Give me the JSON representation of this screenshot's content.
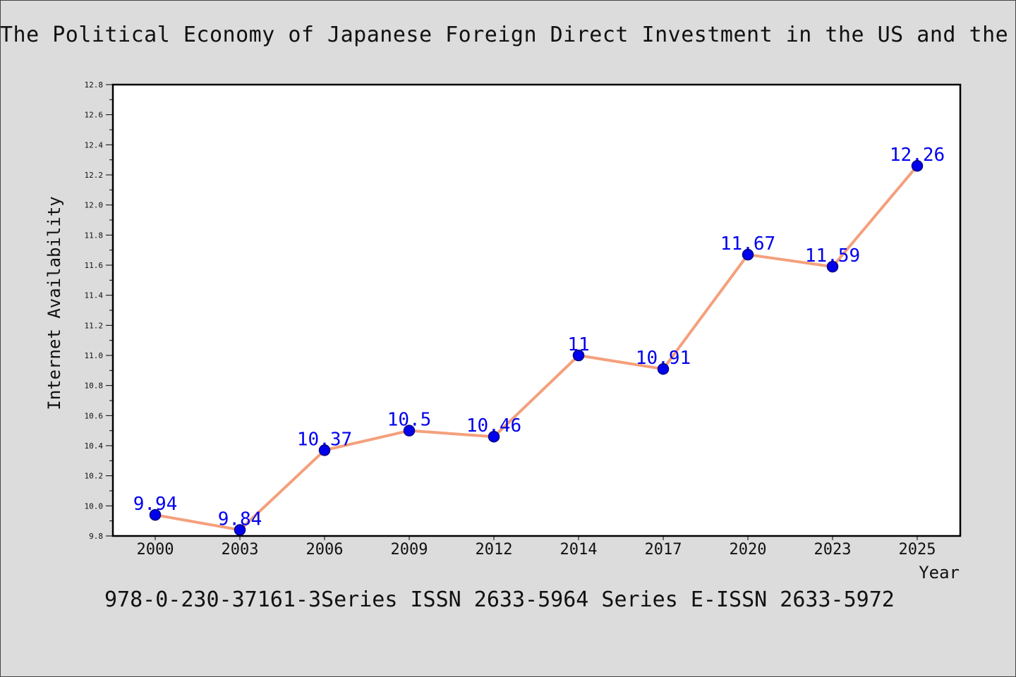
{
  "header": {
    "title": "The Political Economy of Japanese Foreign Direct Investment in the US and the UK"
  },
  "footer": {
    "caption": "978-0-230-37161-3Series ISSN 2633-5964 Series E-ISSN 2633-5972"
  },
  "chart_data": {
    "type": "line",
    "title": "The Political Economy of Japanese Foreign Direct Investment in the US and the UK",
    "xlabel": "Year",
    "ylabel": "Internet Availability",
    "categories": [
      "2000",
      "2003",
      "2006",
      "2009",
      "2012",
      "2014",
      "2017",
      "2020",
      "2023",
      "2025"
    ],
    "values": [
      9.94,
      9.84,
      10.37,
      10.5,
      10.46,
      11,
      10.91,
      11.67,
      11.59,
      12.26
    ],
    "data_labels": [
      "9.94",
      "9.84",
      "10.37",
      "10.5",
      "10.46",
      "11",
      "10.91",
      "11.67",
      "11.59",
      "12.26"
    ],
    "ylim": [
      9.8,
      12.8
    ],
    "yticks": [
      "9.8",
      "10.0",
      "10.2",
      "10.4",
      "10.6",
      "10.8",
      "11.0",
      "11.2",
      "11.4",
      "11.6",
      "11.8",
      "12.0",
      "12.2",
      "12.4",
      "12.6",
      "12.8"
    ],
    "grid": false,
    "legend": "none",
    "colors": {
      "line": "#f4a07c",
      "marker": "#0000ee",
      "marker_edge": "#000080",
      "data_label": "#0000ee",
      "background": "#dcdcdc",
      "plot_background": "#ffffff"
    }
  }
}
